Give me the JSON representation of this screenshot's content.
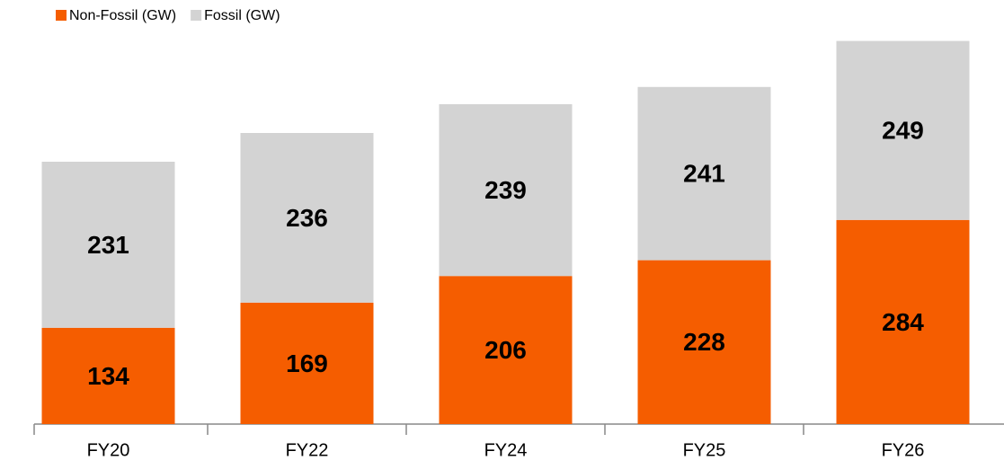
{
  "chart_data": {
    "type": "stacked_bar",
    "categories": [
      "FY20",
      "FY22",
      "FY24",
      "FY25",
      "FY26"
    ],
    "series": [
      {
        "name": "Non-Fossil (GW)",
        "color": "#f55d00",
        "values": [
          134,
          169,
          206,
          228,
          284
        ]
      },
      {
        "name": "Fossil (GW)",
        "color": "#d3d3d3",
        "values": [
          231,
          236,
          239,
          241,
          249
        ]
      }
    ],
    "ylim": [
      0,
      540
    ],
    "legend": "top-left"
  }
}
